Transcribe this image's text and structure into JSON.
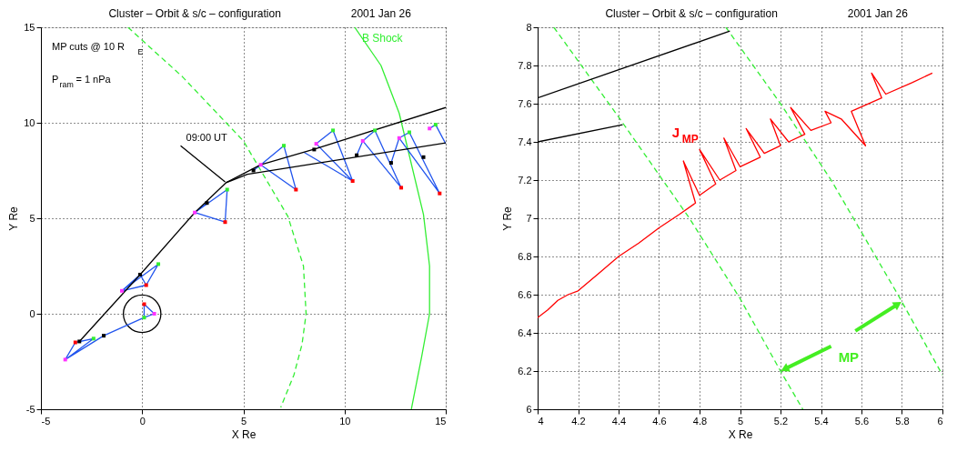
{
  "chart_data": [
    {
      "type": "line",
      "title": "Cluster   – Orbit & s/c – configuration",
      "subtitle": "2001  Jan  26",
      "xlabel": "X Re",
      "ylabel": "Y Re",
      "xlim": [
        -5,
        15
      ],
      "ylim": [
        -5,
        15
      ],
      "xticks": [
        -5,
        0,
        5,
        10,
        15
      ],
      "yticks": [
        -5,
        0,
        5,
        10,
        15
      ],
      "grid": true,
      "annotations": [
        "MP cuts @ 10 R$_{E}$",
        "P$_{ram}$ = 1 nPa",
        {
          "text": "09:00 UT",
          "x": 1.9,
          "y": 8.8
        }
      ],
      "series": [
        {
          "type": "line",
          "color": "#33ee33",
          "line_style": "dashed",
          "x": [
            -0.7,
            2.0,
            5.0,
            7.2,
            7.97,
            8.1,
            7.9,
            7.5,
            6.85
          ],
          "values": [
            15,
            12.4,
            9.05,
            5.1,
            2.5,
            0,
            -1.6,
            -3.2,
            -4.9
          ]
        },
        {
          "type": "line",
          "name": "B Shock",
          "color": "#33ee33",
          "line_style": "solid",
          "x": [
            10.5,
            11.8,
            12.7,
            13.9,
            14.2,
            14.2,
            13.8,
            13.3
          ],
          "values": [
            15,
            13,
            10.5,
            5.2,
            2.5,
            0,
            -2.3,
            -5
          ]
        },
        {
          "type": "scatter",
          "color": "#000000",
          "marker": "circle",
          "x": [
            0
          ],
          "values": [
            0
          ]
        },
        {
          "type": "line",
          "color": "#2255ee",
          "line_style": "solid",
          "x": [
            -3.8,
            -3.3,
            -2.4,
            -3.8,
            -1.9,
            0.1,
            0.6,
            0.1,
            0.1,
            -1.9
          ],
          "values": [
            -2.4,
            -1.5,
            -1.3,
            -2.4,
            -1.15,
            -0.2,
            0,
            0.5,
            -0.2,
            -1.15
          ]
        },
        {
          "type": "line",
          "color": "#2255ee",
          "line_style": "solid",
          "x": [
            -1.0,
            0.2,
            0.8,
            -1.0,
            -0.1,
            0.2
          ],
          "values": [
            1.2,
            1.5,
            2.6,
            1.2,
            2.05,
            1.5
          ]
        },
        {
          "type": "line",
          "color": "#2255ee",
          "line_style": "solid",
          "x": [
            2.6,
            4.1,
            4.2,
            2.6,
            3.2
          ],
          "values": [
            5.3,
            4.8,
            6.5,
            5.3,
            5.8
          ]
        },
        {
          "type": "line",
          "color": "#2255ee",
          "line_style": "solid",
          "x": [
            5.86,
            7.0,
            7.6,
            5.86,
            5.5
          ],
          "values": [
            7.8,
            8.8,
            6.5,
            7.8,
            7.5
          ]
        },
        {
          "type": "line",
          "color": "#2255ee",
          "line_style": "solid",
          "x": [
            10.4,
            8.6,
            9.43,
            10.4,
            8.0
          ],
          "values": [
            6.95,
            8.9,
            9.6,
            6.95,
            8.45
          ]
        },
        {
          "type": "line",
          "color": "#2255ee",
          "line_style": "solid",
          "x": [
            10.6,
            10.9,
            11.5,
            12.8,
            10.9,
            12.8
          ],
          "values": [
            8.3,
            9.05,
            9.6,
            6.6,
            9.05,
            6.6
          ]
        },
        {
          "type": "line",
          "color": "#2255ee",
          "line_style": "solid",
          "x": [
            12.7,
            13.2,
            14.7,
            12.7,
            12.3
          ],
          "values": [
            9.2,
            9.5,
            6.3,
            9.2,
            7.9
          ]
        },
        {
          "type": "line",
          "color": "#2255ee",
          "line_style": "solid",
          "x": [
            14.2,
            14.5,
            15.0
          ],
          "values": [
            9.7,
            9.9,
            8.9
          ]
        },
        {
          "type": "line",
          "color": "#000000",
          "line_style": "solid",
          "x": [
            -3.1,
            -0.1,
            2.6,
            4.14,
            5.2,
            15
          ],
          "values": [
            -1.45,
            2.05,
            5.3,
            6.86,
            7.3,
            8.95
          ]
        },
        {
          "type": "line",
          "color": "#000000",
          "line_style": "solid",
          "x": [
            4.14,
            5.86,
            8.6,
            15
          ],
          "values": [
            6.86,
            7.8,
            8.65,
            10.8
          ]
        },
        {
          "type": "line",
          "color": "#000000",
          "line_style": "solid",
          "x": [
            1.9,
            4.1
          ],
          "values": [
            8.8,
            6.9
          ]
        },
        {
          "type": "scatter",
          "color": "#ff0000",
          "marker": "square",
          "x": [
            -3.3,
            0.1,
            0.2,
            4.1,
            7.6,
            10.4,
            12.8,
            14.7
          ],
          "values": [
            -1.5,
            0.5,
            1.5,
            4.8,
            6.5,
            6.95,
            6.6,
            6.3
          ]
        },
        {
          "type": "scatter",
          "color": "#ff33ff",
          "marker": "square",
          "x": [
            -3.8,
            0.6,
            -1.0,
            2.6,
            5.86,
            8.6,
            10.9,
            12.7,
            14.2
          ],
          "values": [
            -2.4,
            0,
            1.2,
            5.3,
            7.8,
            8.9,
            9.05,
            9.2,
            9.7
          ]
        },
        {
          "type": "scatter",
          "color": "#33ee33",
          "marker": "square",
          "x": [
            -2.4,
            0.1,
            0.8,
            4.2,
            7.0,
            9.43,
            11.5,
            13.2,
            14.5
          ],
          "values": [
            -1.3,
            -0.2,
            2.6,
            6.5,
            8.8,
            9.6,
            9.6,
            9.5,
            9.9
          ]
        },
        {
          "type": "scatter",
          "color": "#000000",
          "marker": "square",
          "x": [
            -3.1,
            -1.9,
            -0.1,
            3.2,
            5.5,
            8.5,
            10.6,
            12.3,
            13.9
          ],
          "values": [
            -1.45,
            -1.15,
            2.05,
            5.8,
            7.5,
            8.6,
            8.3,
            7.9,
            8.2
          ]
        }
      ]
    },
    {
      "type": "line",
      "title": "Cluster   – Orbit & s/c – configuration",
      "subtitle": "2001  Jan  26",
      "xlabel": "X Re",
      "ylabel": "Y Re",
      "xlim": [
        4,
        6
      ],
      "ylim": [
        6,
        8
      ],
      "xticks": [
        4,
        4.2,
        4.4,
        4.6,
        4.8,
        5,
        5.2,
        5.4,
        5.6,
        5.8,
        6
      ],
      "yticks": [
        6,
        6.2,
        6.4,
        6.6,
        6.8,
        7,
        7.2,
        7.4,
        7.6,
        7.8,
        8
      ],
      "grid": true,
      "series": [
        {
          "type": "line",
          "color": "#33ee33",
          "line_style": "dashed",
          "x": [
            4.08,
            4.4,
            4.75,
            5.0,
            5.2,
            5.31
          ],
          "values": [
            8,
            7.53,
            7.0,
            6.58,
            6.2,
            6.0
          ]
        },
        {
          "type": "line",
          "color": "#33ee33",
          "line_style": "dashed",
          "x": [
            4.93,
            5.2,
            5.45,
            5.78,
            6.0
          ],
          "values": [
            8,
            7.6,
            7.2,
            6.6,
            6.18
          ]
        },
        {
          "type": "line",
          "color": "#000000",
          "line_style": "solid",
          "x": [
            4.0,
            4.95
          ],
          "values": [
            7.63,
            7.98
          ]
        },
        {
          "type": "line",
          "color": "#000000",
          "line_style": "solid",
          "x": [
            4.0,
            4.42
          ],
          "values": [
            7.4,
            7.49
          ]
        },
        {
          "type": "line",
          "name": "J$_{MP}$",
          "color": "#ff0000",
          "line_style": "solid",
          "x": [
            4.0,
            4.05,
            4.1,
            4.15,
            4.2,
            4.3,
            4.4,
            4.5,
            4.6,
            4.7,
            4.78,
            4.72,
            4.8,
            4.88,
            4.8,
            4.9,
            4.98,
            4.92,
            5.0,
            5.1,
            5.03,
            5.12,
            5.2,
            5.15,
            5.24,
            5.32,
            5.25,
            5.35,
            5.45,
            5.42,
            5.5,
            5.62,
            5.55,
            5.7,
            5.65,
            5.72,
            5.85,
            5.95
          ],
          "values": [
            6.48,
            6.52,
            6.57,
            6.6,
            6.62,
            6.71,
            6.8,
            6.87,
            6.95,
            7.02,
            7.08,
            7.3,
            7.12,
            7.18,
            7.36,
            7.2,
            7.25,
            7.42,
            7.27,
            7.32,
            7.47,
            7.34,
            7.38,
            7.52,
            7.4,
            7.44,
            7.58,
            7.46,
            7.5,
            7.56,
            7.52,
            7.38,
            7.56,
            7.63,
            7.76,
            7.65,
            7.71,
            7.76
          ]
        },
        {
          "type": "line",
          "name": "MP",
          "color": "#44ee22",
          "line_style": "solid",
          "marker": "triangle",
          "x": [
            5.45,
            5.22
          ],
          "values": [
            6.33,
            6.21
          ]
        },
        {
          "type": "line",
          "color": "#44ee22",
          "line_style": "solid",
          "marker": "triangle",
          "x": [
            5.57,
            5.78
          ],
          "values": [
            6.41,
            6.55
          ]
        }
      ]
    }
  ]
}
